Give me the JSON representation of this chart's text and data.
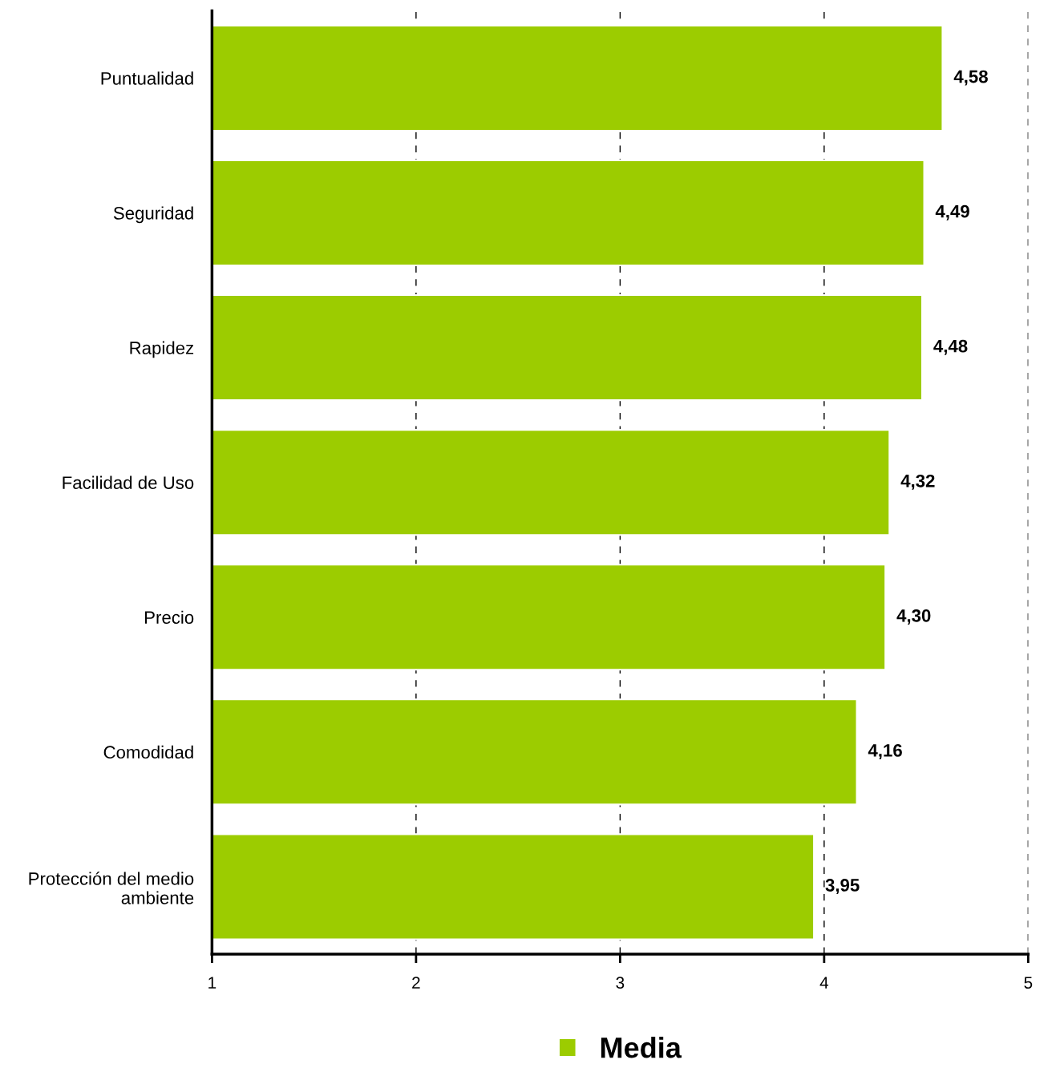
{
  "chart_data": {
    "type": "bar",
    "orientation": "horizontal",
    "categories": [
      "Puntualidad",
      "Seguridad",
      "Rapidez",
      "Facilidad de Uso",
      "Precio",
      "Comodidad",
      "Protección del medio\nambiente"
    ],
    "series": [
      {
        "name": "Media",
        "color": "#9ccc00",
        "values": [
          4.58,
          4.49,
          4.48,
          4.32,
          4.3,
          4.16,
          3.95
        ],
        "value_labels": [
          "4,58",
          "4,49",
          "4,48",
          "4,32",
          "4,30",
          "4,16",
          "3,95"
        ]
      }
    ],
    "xlim": [
      1,
      5
    ],
    "xticks": [
      1,
      2,
      3,
      4,
      5
    ],
    "grid": "x",
    "legend": "bottom"
  }
}
